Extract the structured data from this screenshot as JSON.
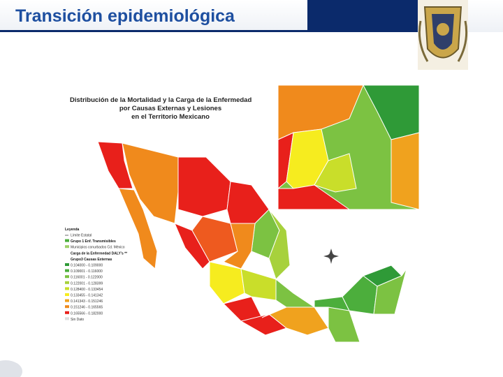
{
  "header": {
    "title": "Transición epidemiológica"
  },
  "map": {
    "title_lines": [
      "Distribución de la Mortalidad y la Carga de la Enfermedad",
      "por Causas Externas y Lesiones",
      "en el Territorio Mexicano"
    ],
    "legend": {
      "title": "Leyenda",
      "items": [
        "Límite Estatal",
        "Grupo 1 Enf. Transmisibles",
        "Municipios conurbados Cd. México",
        "Carga de la Enfermedad DALY's **",
        "Grupo3 Causas Externas",
        "0.104000 - 0.109000",
        "0.109001 - 0.116000",
        "0.116001 - 0.122000",
        "0.122001 - 0.128399",
        "0.128400 - 0.133454",
        "0.133455 - 0.141342",
        "0.141343 - 0.151246",
        "0.151246 - 0.165565",
        "0.165566 - 0.182000",
        "Sin Dato"
      ]
    }
  }
}
